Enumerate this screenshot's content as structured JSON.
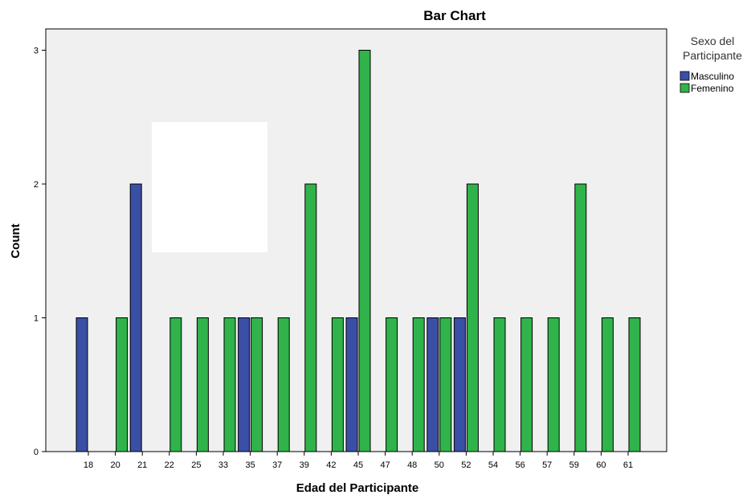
{
  "chart_data": {
    "type": "bar",
    "title": "Bar Chart",
    "xlabel": "Edad del Participante",
    "ylabel": "Count",
    "ylim": [
      0,
      3
    ],
    "yticks": [
      "0",
      "1",
      "2",
      "3"
    ],
    "categories": [
      "18",
      "20",
      "21",
      "22",
      "25",
      "33",
      "35",
      "37",
      "39",
      "42",
      "45",
      "47",
      "48",
      "50",
      "52",
      "54",
      "56",
      "57",
      "59",
      "60",
      "61"
    ],
    "series": [
      {
        "name": "Masculino",
        "color": "#3a4fa6",
        "values": [
          1,
          0,
          2,
          0,
          0,
          0,
          1,
          0,
          0,
          0,
          1,
          0,
          0,
          1,
          1,
          0,
          0,
          0,
          0,
          0,
          0
        ]
      },
      {
        "name": "Femenino",
        "color": "#2fb34a",
        "values": [
          0,
          1,
          0,
          1,
          1,
          1,
          1,
          1,
          2,
          1,
          3,
          1,
          1,
          1,
          2,
          1,
          1,
          1,
          2,
          1,
          1
        ]
      }
    ],
    "legend": {
      "title_lines": [
        "Sexo del",
        "Participante"
      ],
      "placement": "top-right"
    },
    "grid": false,
    "plot_background": "#f0f0f0"
  }
}
